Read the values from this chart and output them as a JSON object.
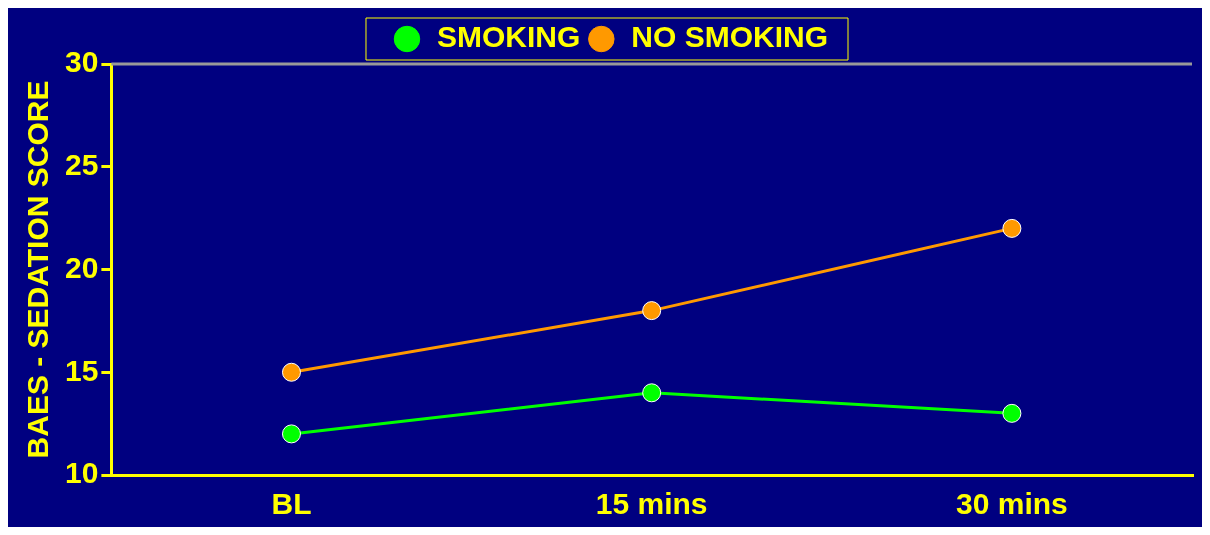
{
  "chart_data": {
    "type": "line",
    "ylabel": "BAES - SEDATION SCORE",
    "categories": [
      "BL",
      "15 mins",
      "30 mins"
    ],
    "series": [
      {
        "name": "SMOKING",
        "color": "#00ff00",
        "values": [
          12,
          14,
          13
        ]
      },
      {
        "name": "NO SMOKING",
        "color": "#ff9900",
        "values": [
          15,
          18,
          22
        ]
      }
    ],
    "ylim": [
      10,
      30
    ],
    "yticks": [
      10,
      15,
      20,
      25,
      30
    ],
    "grid": false,
    "legend": "top",
    "marker": "circle",
    "line_style": "solid"
  }
}
